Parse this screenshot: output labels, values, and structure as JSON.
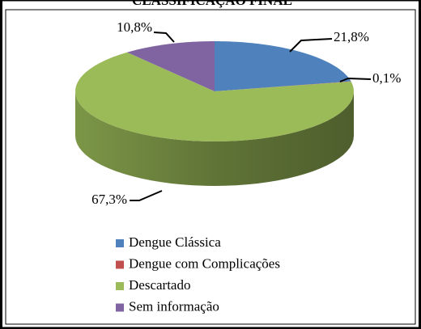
{
  "chart_data": {
    "type": "pie",
    "title": "CLASSIFICAÇÃO FINAL",
    "categories": [
      "Dengue Clássica",
      "Dengue com Complicações",
      "Descartado",
      "Sem informação"
    ],
    "values": [
      21.8,
      0.1,
      67.3,
      10.8
    ],
    "value_labels": [
      "21,8%",
      "0,1%",
      "67,3%",
      "10,8%"
    ],
    "colors": [
      "#4f81bd",
      "#c0504d",
      "#9bbb59",
      "#8064a2"
    ],
    "legend": "bottom"
  }
}
